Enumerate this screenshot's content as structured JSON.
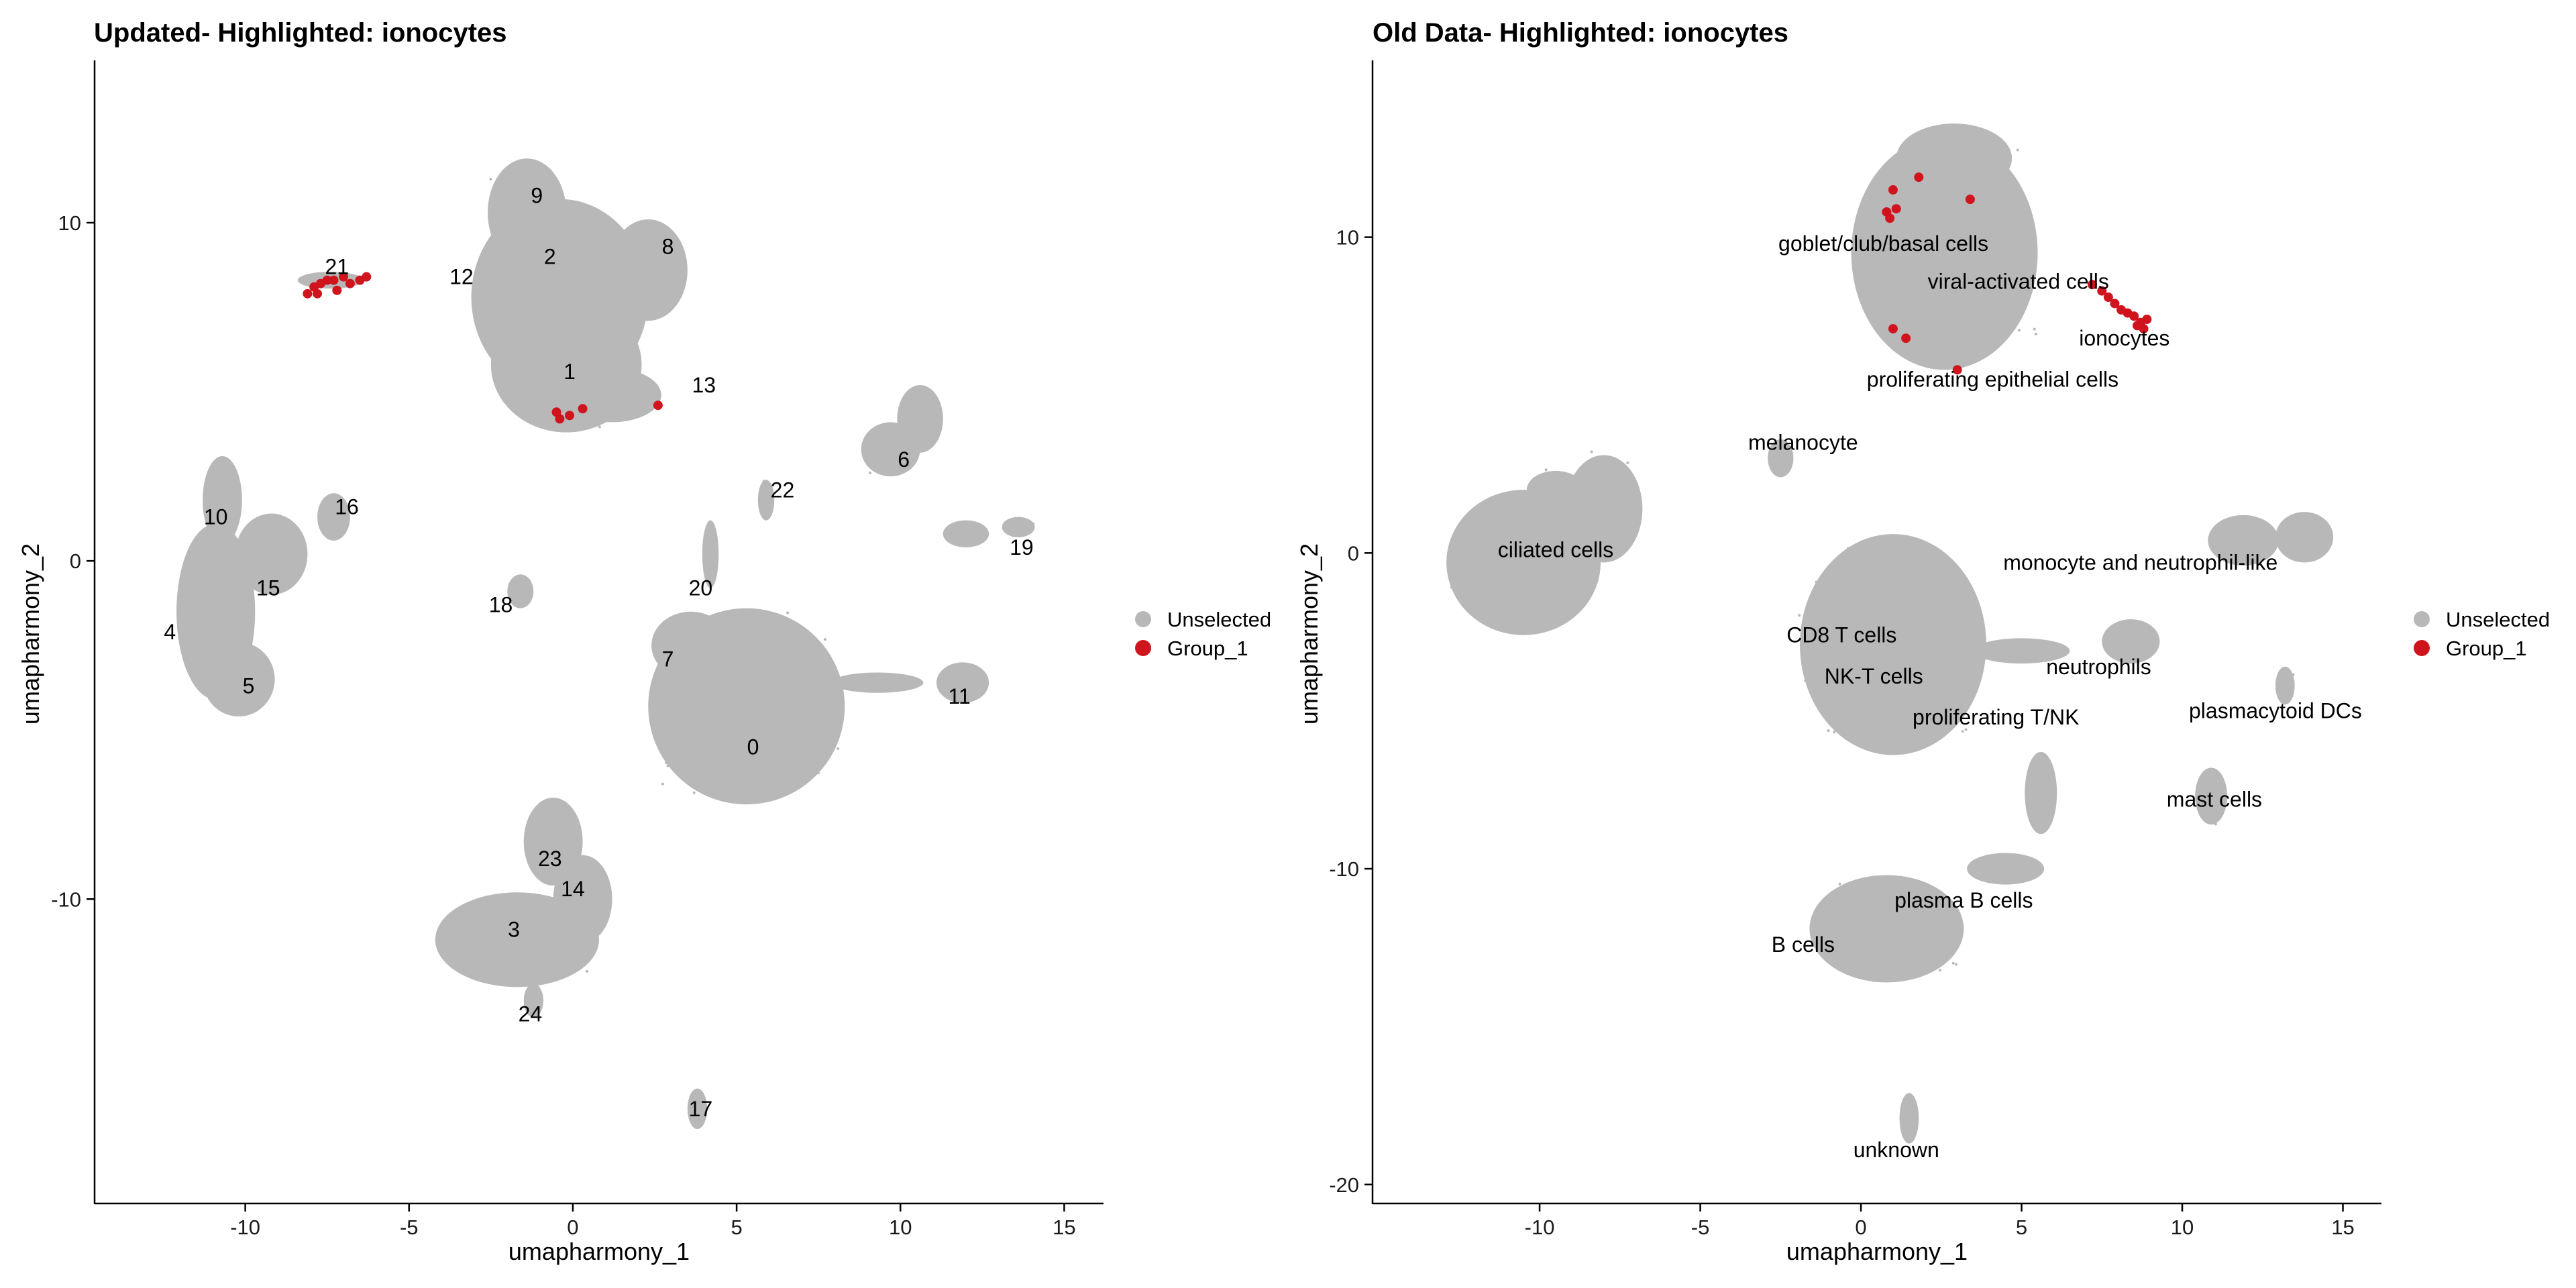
{
  "colors": {
    "unselected": "#B8B8B8",
    "group": "#D0141E",
    "axis": "#000000"
  },
  "chart_data": [
    {
      "type": "scatter",
      "title": "Updated- Highlighted: ionocytes",
      "xlabel": "umapharmony_1",
      "ylabel": "umapharmony_2",
      "xlim": [
        -14.6,
        16.2
      ],
      "ylim": [
        -19.0,
        14.8
      ],
      "xticks": [
        -10,
        -5,
        0,
        5,
        10,
        15
      ],
      "yticks": [
        -10,
        0,
        10
      ],
      "legend": {
        "position": "right",
        "entries": [
          "Unselected",
          "Group_1"
        ]
      },
      "cluster_labels": [
        {
          "text": "0",
          "x": 5.5,
          "y": -5.5
        },
        {
          "text": "1",
          "x": -0.1,
          "y": 5.6
        },
        {
          "text": "2",
          "x": -0.7,
          "y": 9.0
        },
        {
          "text": "3",
          "x": -1.8,
          "y": -10.9
        },
        {
          "text": "4",
          "x": -12.3,
          "y": -2.1
        },
        {
          "text": "5",
          "x": -9.9,
          "y": -3.7
        },
        {
          "text": "6",
          "x": 10.1,
          "y": 3.0
        },
        {
          "text": "7",
          "x": 2.9,
          "y": -2.9
        },
        {
          "text": "8",
          "x": 2.9,
          "y": 9.3
        },
        {
          "text": "9",
          "x": -1.1,
          "y": 10.8
        },
        {
          "text": "10",
          "x": -10.9,
          "y": 1.3
        },
        {
          "text": "11",
          "x": 11.8,
          "y": -4.0
        },
        {
          "text": "12",
          "x": -3.4,
          "y": 8.4
        },
        {
          "text": "13",
          "x": 4.0,
          "y": 5.2
        },
        {
          "text": "14",
          "x": 0.0,
          "y": -9.7
        },
        {
          "text": "15",
          "x": -9.3,
          "y": -0.8
        },
        {
          "text": "16",
          "x": -6.9,
          "y": 1.6
        },
        {
          "text": "17",
          "x": 3.9,
          "y": -16.2
        },
        {
          "text": "18",
          "x": -2.2,
          "y": -1.3
        },
        {
          "text": "19",
          "x": 13.7,
          "y": 0.4
        },
        {
          "text": "20",
          "x": 3.9,
          "y": -0.8
        },
        {
          "text": "21",
          "x": -7.2,
          "y": 8.7
        },
        {
          "text": "22",
          "x": 6.4,
          "y": 2.1
        },
        {
          "text": "23",
          "x": -0.7,
          "y": -8.8
        },
        {
          "text": "24",
          "x": -1.3,
          "y": -13.4
        }
      ],
      "highlighted_cells": [
        {
          "x": -7.9,
          "y": 8.1
        },
        {
          "x": -7.7,
          "y": 8.2
        },
        {
          "x": -7.5,
          "y": 8.3
        },
        {
          "x": -7.3,
          "y": 8.3
        },
        {
          "x": -7.0,
          "y": 8.4
        },
        {
          "x": -6.8,
          "y": 8.2
        },
        {
          "x": -6.5,
          "y": 8.3
        },
        {
          "x": -6.3,
          "y": 8.4
        },
        {
          "x": -8.1,
          "y": 7.9
        },
        {
          "x": -7.8,
          "y": 7.9
        },
        {
          "x": -7.2,
          "y": 8.0
        },
        {
          "x": -0.5,
          "y": 4.4
        },
        {
          "x": -0.4,
          "y": 4.2
        },
        {
          "x": -0.1,
          "y": 4.3
        },
        {
          "x": 0.3,
          "y": 4.5
        },
        {
          "x": 2.6,
          "y": 4.6
        }
      ]
    },
    {
      "type": "scatter",
      "title": "Old Data- Highlighted: ionocytes",
      "xlabel": "umapharmony_1",
      "ylabel": "umapharmony_2",
      "xlim": [
        -15.2,
        16.2
      ],
      "ylim": [
        -20.6,
        15.6
      ],
      "xticks": [
        -10,
        -5,
        0,
        5,
        10,
        15
      ],
      "yticks": [
        -20,
        -10,
        0,
        10
      ],
      "legend": {
        "position": "right",
        "entries": [
          "Unselected",
          "Group_1"
        ]
      },
      "cluster_labels": [
        {
          "text": "goblet/club/basal cells",
          "x": 0.7,
          "y": 9.8
        },
        {
          "text": "viral-activated cells",
          "x": 4.9,
          "y": 8.6
        },
        {
          "text": "ionocytes",
          "x": 8.2,
          "y": 6.8
        },
        {
          "text": "proliferating epithelial cells",
          "x": 4.1,
          "y": 5.5
        },
        {
          "text": "melanocyte",
          "x": -1.8,
          "y": 3.5
        },
        {
          "text": "ciliated cells",
          "x": -9.5,
          "y": 0.1
        },
        {
          "text": "monocyte and neutrophil-like",
          "x": 8.7,
          "y": -0.3
        },
        {
          "text": "CD8 T cells",
          "x": -0.6,
          "y": -2.6
        },
        {
          "text": "NK-T cells",
          "x": 0.4,
          "y": -3.9
        },
        {
          "text": "neutrophils",
          "x": 7.4,
          "y": -3.6
        },
        {
          "text": "proliferating T/NK",
          "x": 4.2,
          "y": -5.2
        },
        {
          "text": "plasmacytoid DCs",
          "x": 12.9,
          "y": -5.0
        },
        {
          "text": "mast cells",
          "x": 11.0,
          "y": -7.8
        },
        {
          "text": "plasma B cells",
          "x": 3.2,
          "y": -11.0
        },
        {
          "text": "B cells",
          "x": -1.8,
          "y": -12.4
        },
        {
          "text": "unknown",
          "x": 1.1,
          "y": -18.9
        }
      ],
      "highlighted_cells": [
        {
          "x": 0.8,
          "y": 10.8
        },
        {
          "x": 0.9,
          "y": 10.6
        },
        {
          "x": 1.1,
          "y": 10.9
        },
        {
          "x": 1.0,
          "y": 11.5
        },
        {
          "x": 1.8,
          "y": 11.9
        },
        {
          "x": 3.4,
          "y": 11.2
        },
        {
          "x": 1.0,
          "y": 7.1
        },
        {
          "x": 1.4,
          "y": 6.8
        },
        {
          "x": 3.0,
          "y": 5.8
        },
        {
          "x": 7.2,
          "y": 8.5
        },
        {
          "x": 7.5,
          "y": 8.3
        },
        {
          "x": 7.7,
          "y": 8.1
        },
        {
          "x": 7.9,
          "y": 7.9
        },
        {
          "x": 8.1,
          "y": 7.7
        },
        {
          "x": 8.3,
          "y": 7.6
        },
        {
          "x": 8.5,
          "y": 7.5
        },
        {
          "x": 8.7,
          "y": 7.3
        },
        {
          "x": 8.8,
          "y": 7.1
        },
        {
          "x": 8.9,
          "y": 7.4
        },
        {
          "x": 8.6,
          "y": 7.2
        }
      ]
    }
  ]
}
